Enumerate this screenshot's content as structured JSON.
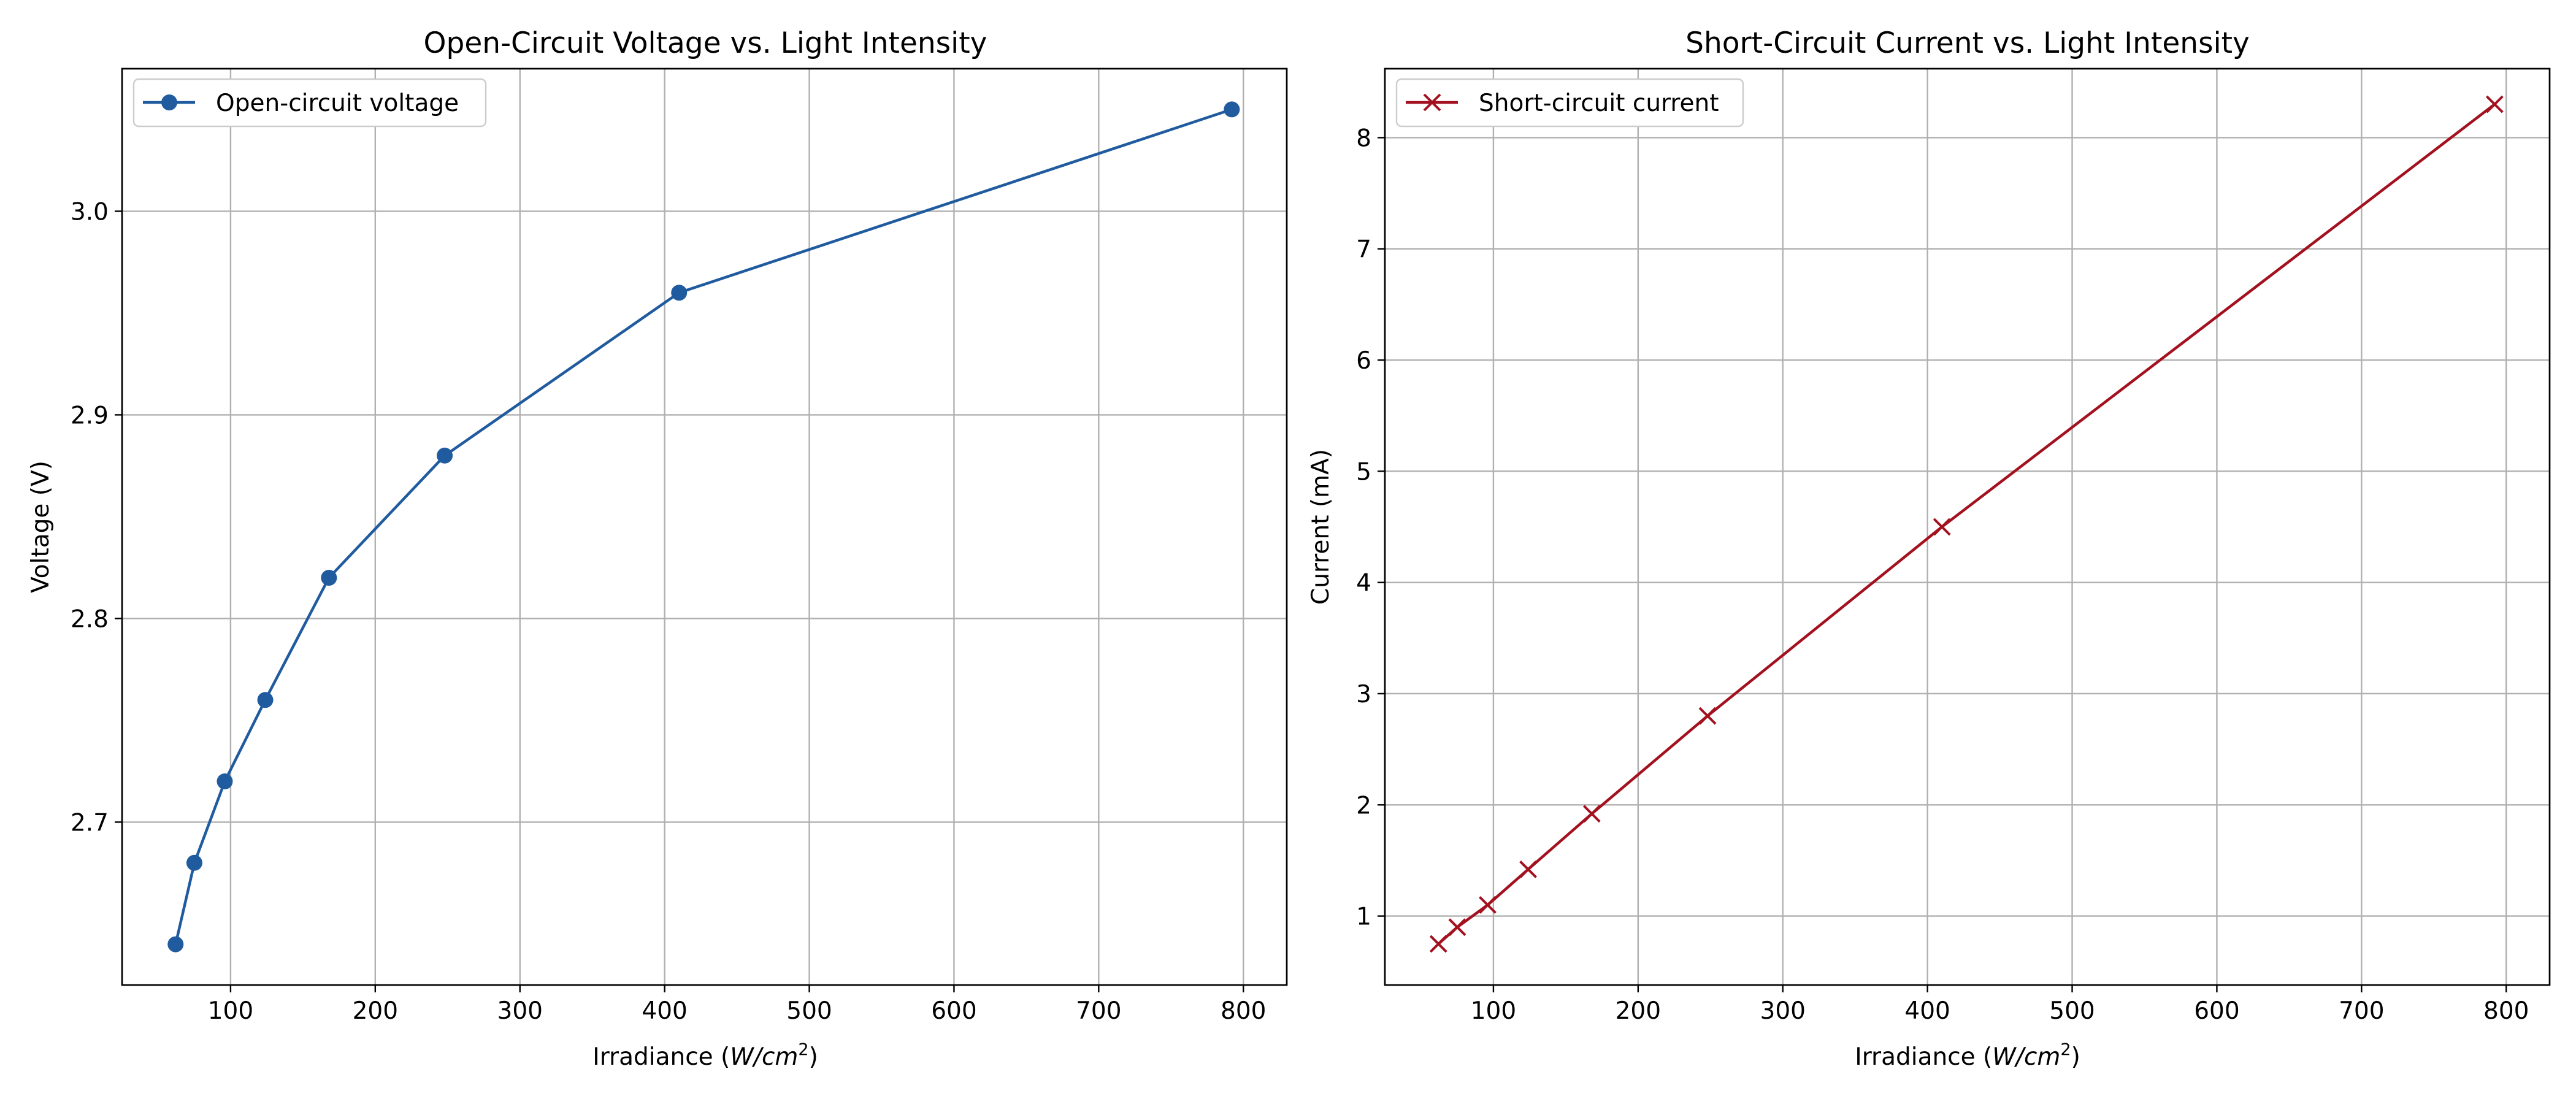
{
  "colors": {
    "voltage": "#1f5b9e",
    "current": "#a3111f"
  },
  "chart_data": [
    {
      "type": "line",
      "title": "Open-Circuit Voltage vs. Light Intensity",
      "xlabel": "Irradiance (W/cm²)",
      "ylabel": "Voltage (V)",
      "xlim": [
        25,
        830
      ],
      "ylim": [
        2.62,
        3.07
      ],
      "xticks": [
        100,
        200,
        300,
        400,
        500,
        600,
        700,
        800
      ],
      "yticks": [
        2.7,
        2.8,
        2.9,
        3.0
      ],
      "grid": true,
      "legend_position": "top-left",
      "series": [
        {
          "name": "Open-circuit voltage",
          "marker": "circle",
          "x": [
            62,
            75,
            96,
            124,
            168,
            248,
            410,
            792
          ],
          "y": [
            2.64,
            2.68,
            2.72,
            2.76,
            2.82,
            2.88,
            2.96,
            3.05
          ]
        }
      ]
    },
    {
      "type": "line",
      "title": "Short-Circuit Current vs. Light Intensity",
      "xlabel": "Irradiance (W/cm²)",
      "ylabel": "Current (mA)",
      "xlim": [
        25,
        830
      ],
      "ylim": [
        0.38,
        8.62
      ],
      "xticks": [
        100,
        200,
        300,
        400,
        500,
        600,
        700,
        800
      ],
      "yticks": [
        1,
        2,
        3,
        4,
        5,
        6,
        7,
        8
      ],
      "grid": true,
      "legend_position": "top-left",
      "series": [
        {
          "name": "Short-circuit current",
          "marker": "x",
          "x": [
            62,
            75,
            96,
            124,
            168,
            248,
            410,
            792
          ],
          "y": [
            0.75,
            0.9,
            1.1,
            1.42,
            1.92,
            2.8,
            4.5,
            8.3
          ]
        }
      ]
    }
  ]
}
